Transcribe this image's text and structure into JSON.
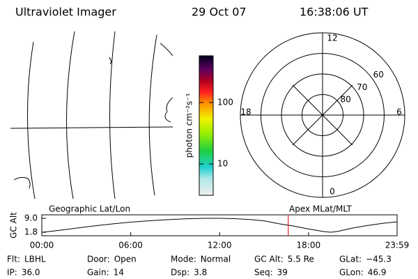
{
  "header": {
    "title": "Ultraviolet Imager",
    "date": "29 Oct 07",
    "time": "16:38:06 UT"
  },
  "colorbar": {
    "label": "photon cm⁻²s⁻¹",
    "log": true,
    "ylim": [
      3.1,
      575
    ],
    "yticks": [
      10,
      100
    ]
  },
  "polar": {
    "rlim": [
      90,
      50
    ],
    "rticks": [
      60,
      70,
      80
    ],
    "hour_ticks": [
      12,
      18,
      6,
      0
    ]
  },
  "chart_data": {
    "type": "line",
    "ylabel": "GC Alt",
    "left_label": "Geographic Lat/Lon",
    "right_label": "Apex MLat/MLT",
    "x": [
      0,
      1,
      2,
      3,
      4,
      5,
      6,
      7,
      8,
      9,
      10,
      11,
      12,
      13,
      14,
      15,
      16,
      17,
      18,
      19,
      19.5,
      20,
      21,
      22,
      23,
      23.98
    ],
    "series": [
      {
        "color": "#000000",
        "values": [
          1.8,
          2.6,
          3.6,
          4.6,
          5.5,
          6.3,
          7.0,
          7.6,
          8.1,
          8.5,
          8.8,
          9.0,
          9.0,
          8.8,
          8.4,
          7.7,
          6.2,
          5.0,
          3.5,
          2.2,
          1.8,
          2.3,
          4.0,
          5.3,
          6.4,
          7.2
        ]
      }
    ],
    "current_time": 16.635,
    "marker_color": "#cc0000",
    "xlim": [
      0,
      23.98
    ],
    "ylim": [
      0,
      10.8
    ],
    "xticks": [
      {
        "value": 0,
        "label": "00:00"
      },
      {
        "value": 6,
        "label": "06:00"
      },
      {
        "value": 12,
        "label": "12:00"
      },
      {
        "value": 18,
        "label": "18:00"
      },
      {
        "value": 23.98,
        "label": "23:59"
      }
    ],
    "yticks": [
      {
        "value": 9,
        "label": "9.0"
      },
      {
        "value": 1.8,
        "label": "1.8"
      }
    ]
  },
  "status": {
    "rows": [
      [
        {
          "label": "Flt:",
          "value": "LBHL"
        },
        {
          "label": "Door:",
          "value": "Open"
        },
        {
          "label": "Mode:",
          "value": "Normal"
        },
        {
          "label": "GC Alt:",
          "value": "5.5 Re"
        },
        {
          "label": "GLat:",
          "value": "−45.3"
        }
      ],
      [
        {
          "label": "IP:",
          "value": "36.0"
        },
        {
          "label": "Gain:",
          "value": "14"
        },
        {
          "label": "Dsp:",
          "value": "3.8"
        },
        {
          "label": "Seq:",
          "value": "39"
        },
        {
          "label": "GLon:",
          "value": "46.9"
        }
      ]
    ]
  }
}
